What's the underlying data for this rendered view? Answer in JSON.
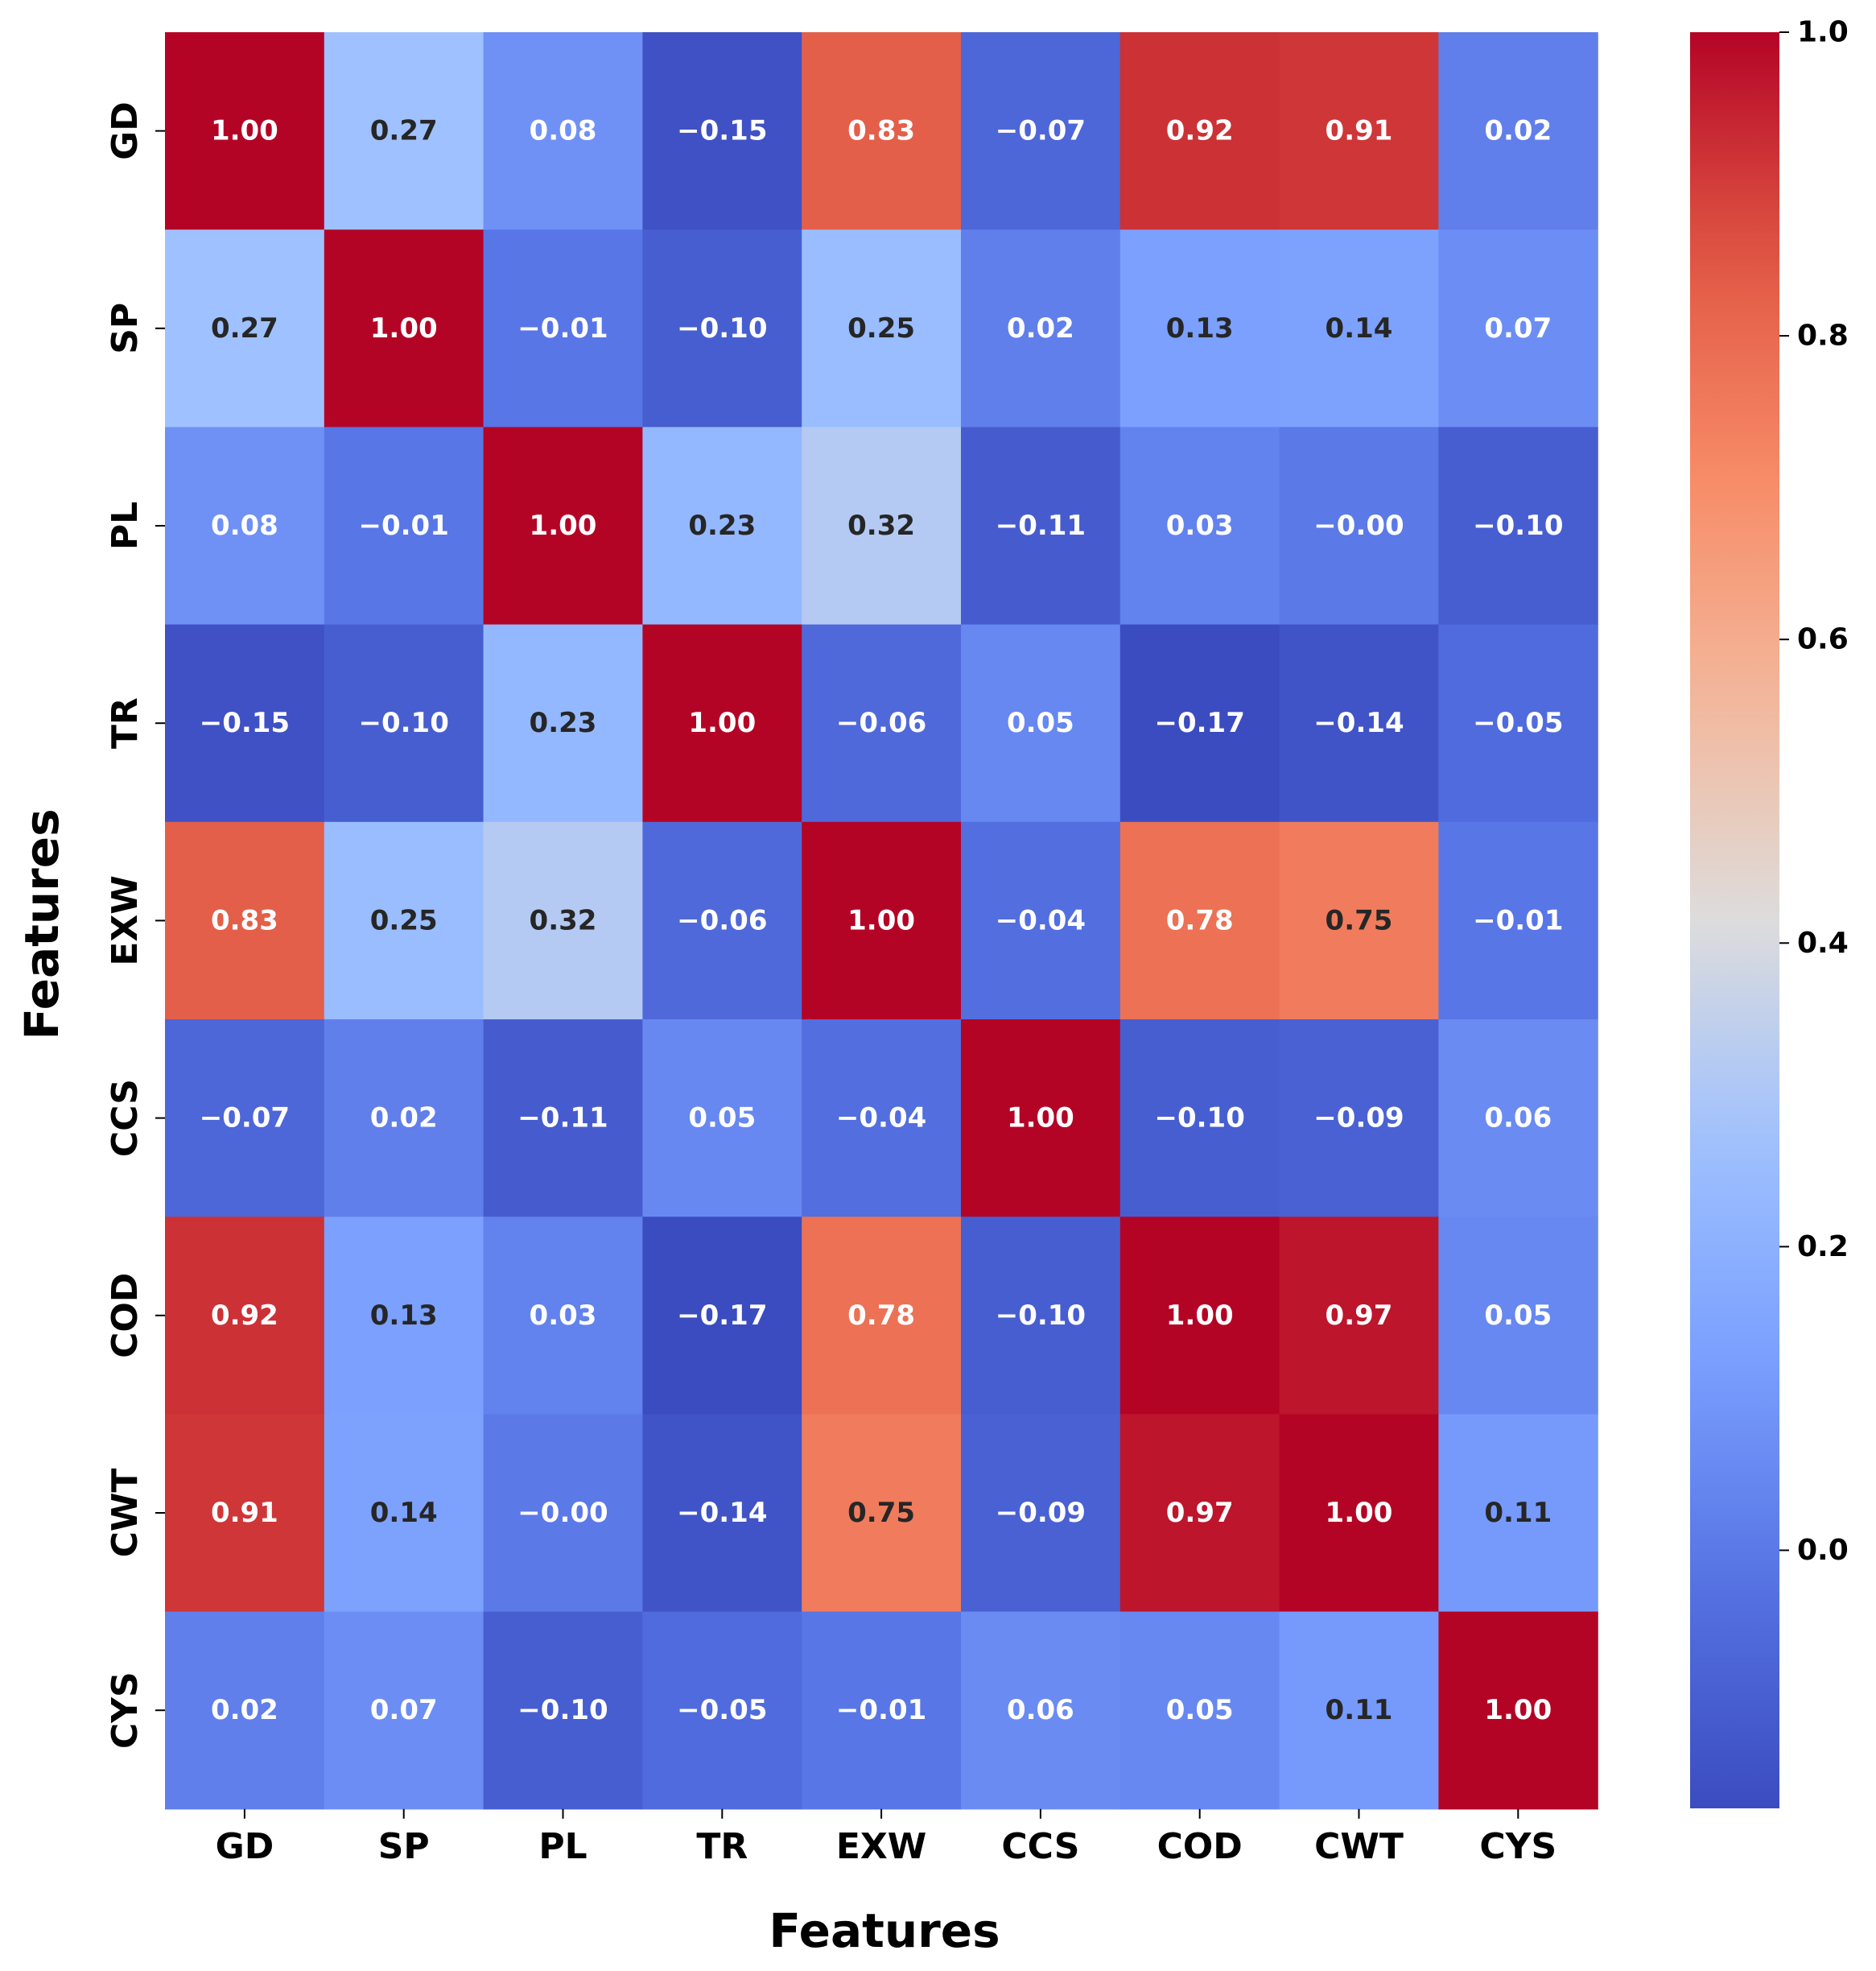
{
  "chart_data": {
    "type": "heatmap",
    "title": "",
    "xlabel": "Features",
    "ylabel": "Features",
    "x_categories": [
      "GD",
      "SP",
      "PL",
      "TR",
      "EXW",
      "CCS",
      "COD",
      "CWT",
      "CYS"
    ],
    "y_categories": [
      "GD",
      "SP",
      "PL",
      "TR",
      "EXW",
      "CCS",
      "COD",
      "CWT",
      "CYS"
    ],
    "values": [
      [
        1.0,
        0.27,
        0.08,
        -0.15,
        0.83,
        -0.07,
        0.92,
        0.91,
        0.02
      ],
      [
        0.27,
        1.0,
        -0.01,
        -0.1,
        0.25,
        0.02,
        0.13,
        0.14,
        0.07
      ],
      [
        0.08,
        -0.01,
        1.0,
        0.23,
        0.32,
        -0.11,
        0.03,
        -0.0,
        -0.1
      ],
      [
        -0.15,
        -0.1,
        0.23,
        1.0,
        -0.06,
        0.05,
        -0.17,
        -0.14,
        -0.05
      ],
      [
        0.83,
        0.25,
        0.32,
        -0.06,
        1.0,
        -0.04,
        0.78,
        0.75,
        -0.01
      ],
      [
        -0.07,
        0.02,
        -0.11,
        0.05,
        -0.04,
        1.0,
        -0.1,
        -0.09,
        0.06
      ],
      [
        0.92,
        0.13,
        0.03,
        -0.17,
        0.78,
        -0.1,
        1.0,
        0.97,
        0.05
      ],
      [
        0.91,
        0.14,
        -0.0,
        -0.14,
        0.75,
        -0.09,
        0.97,
        1.0,
        0.11
      ],
      [
        0.02,
        0.07,
        -0.1,
        -0.05,
        -0.01,
        0.06,
        0.05,
        0.11,
        1.0
      ]
    ],
    "value_format": "2 decimals",
    "colormap": "coolwarm",
    "colorbar": {
      "vmin": -0.17,
      "vmax": 1.0,
      "ticks": [
        0.0,
        0.2,
        0.4,
        0.6,
        0.8,
        1.0
      ],
      "tick_labels": [
        "0.0",
        "0.2",
        "0.4",
        "0.6",
        "0.8",
        "1.0"
      ],
      "position": "right"
    },
    "colors": {
      "low": "#3b4cc0",
      "high": "#b40426",
      "dark_text": "#262626",
      "light_text": "#ffffff"
    }
  }
}
